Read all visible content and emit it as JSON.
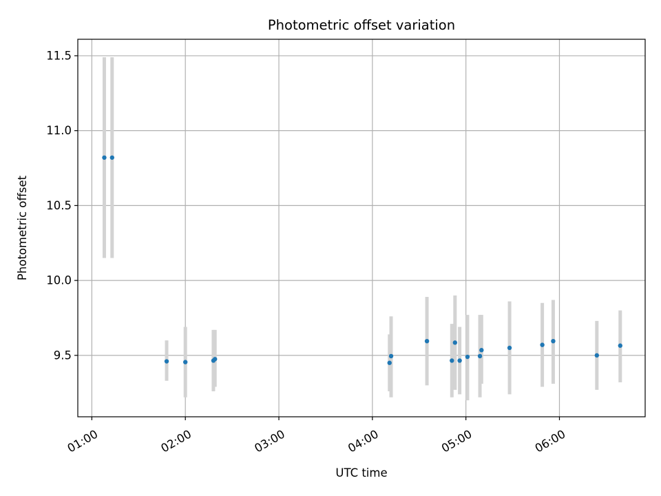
{
  "chart_data": {
    "type": "scatter",
    "title": "Photometric offset variation",
    "xlabel": "UTC time",
    "ylabel": "Photometric offset",
    "x_axis_type": "time",
    "xlim": [
      "00:51",
      "06:55"
    ],
    "ylim": [
      9.09,
      11.61
    ],
    "xticks": [
      "01:00",
      "02:00",
      "03:00",
      "04:00",
      "05:00",
      "06:00"
    ],
    "yticks": [
      9.5,
      10.0,
      10.5,
      11.0,
      11.5
    ],
    "ytick_labels": [
      "9.5",
      "10.0",
      "10.5",
      "11.0",
      "11.5"
    ],
    "grid": true,
    "legend": "none",
    "colors": {
      "point": "#1f77b4",
      "errorbar": "#d3d3d3"
    },
    "points": [
      {
        "x": "01:08",
        "y": 10.82,
        "yerr_low": 10.15,
        "yerr_high": 11.49
      },
      {
        "x": "01:13",
        "y": 10.82,
        "yerr_low": 10.15,
        "yerr_high": 11.49
      },
      {
        "x": "01:48",
        "y": 9.46,
        "yerr_low": 9.33,
        "yerr_high": 9.6
      },
      {
        "x": "02:00",
        "y": 9.455,
        "yerr_low": 9.22,
        "yerr_high": 9.69
      },
      {
        "x": "02:18",
        "y": 9.465,
        "yerr_low": 9.26,
        "yerr_high": 9.67
      },
      {
        "x": "02:19",
        "y": 9.475,
        "yerr_low": 9.29,
        "yerr_high": 9.67
      },
      {
        "x": "04:11",
        "y": 9.45,
        "yerr_low": 9.26,
        "yerr_high": 9.64
      },
      {
        "x": "04:12",
        "y": 9.495,
        "yerr_low": 9.22,
        "yerr_high": 9.76
      },
      {
        "x": "04:35",
        "y": 9.595,
        "yerr_low": 9.3,
        "yerr_high": 9.89
      },
      {
        "x": "04:51",
        "y": 9.465,
        "yerr_low": 9.22,
        "yerr_high": 9.71
      },
      {
        "x": "04:53",
        "y": 9.585,
        "yerr_low": 9.27,
        "yerr_high": 9.9
      },
      {
        "x": "04:56",
        "y": 9.465,
        "yerr_low": 9.24,
        "yerr_high": 9.69
      },
      {
        "x": "05:01",
        "y": 9.49,
        "yerr_low": 9.2,
        "yerr_high": 9.77
      },
      {
        "x": "05:09",
        "y": 9.495,
        "yerr_low": 9.22,
        "yerr_high": 9.77
      },
      {
        "x": "05:10",
        "y": 9.535,
        "yerr_low": 9.31,
        "yerr_high": 9.77
      },
      {
        "x": "05:28",
        "y": 9.55,
        "yerr_low": 9.24,
        "yerr_high": 9.86
      },
      {
        "x": "05:49",
        "y": 9.57,
        "yerr_low": 9.29,
        "yerr_high": 9.85
      },
      {
        "x": "05:56",
        "y": 9.595,
        "yerr_low": 9.31,
        "yerr_high": 9.87
      },
      {
        "x": "06:24",
        "y": 9.5,
        "yerr_low": 9.27,
        "yerr_high": 9.73
      },
      {
        "x": "06:39",
        "y": 9.565,
        "yerr_low": 9.32,
        "yerr_high": 9.8
      }
    ]
  }
}
